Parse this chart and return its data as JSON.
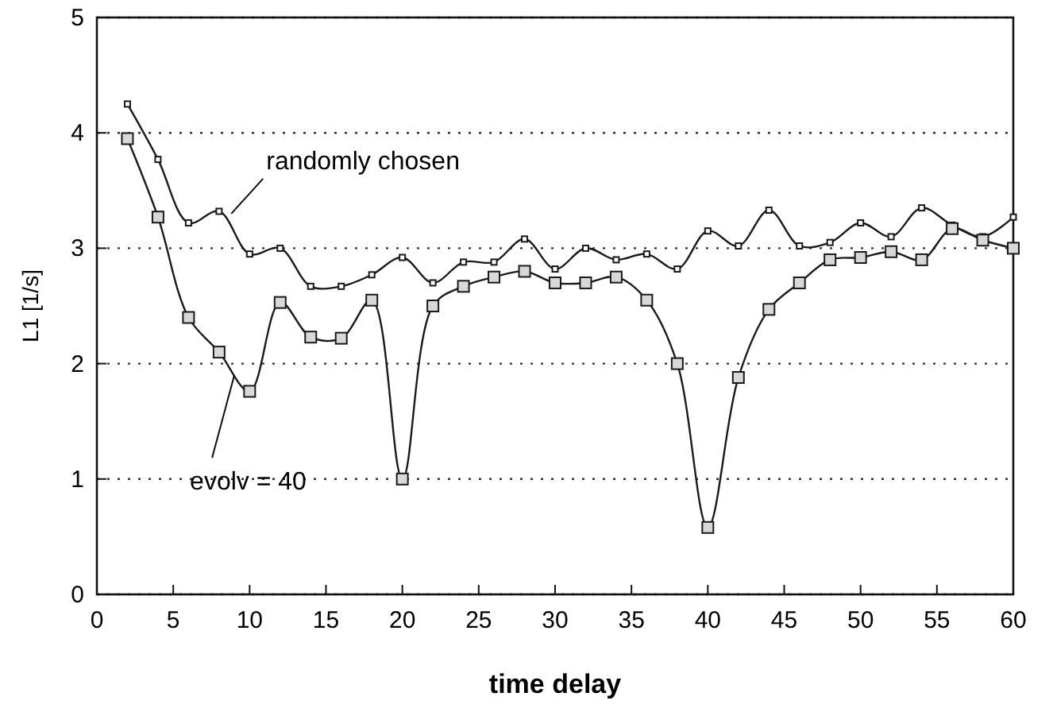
{
  "chart_data": {
    "type": "line",
    "xlabel": "time delay",
    "ylabel": "L1 [1/s]",
    "x": [
      2,
      4,
      6,
      8,
      10,
      12,
      14,
      16,
      18,
      20,
      22,
      24,
      26,
      28,
      30,
      32,
      34,
      36,
      38,
      40,
      42,
      44,
      46,
      48,
      50,
      52,
      54,
      56,
      58,
      60
    ],
    "series": [
      {
        "color": "#1a1a1a",
        "values": [
          4.25,
          3.77,
          3.22,
          3.32,
          2.95,
          3.0,
          2.67,
          2.67,
          2.77,
          2.92,
          2.7,
          2.88,
          2.88,
          3.08,
          2.82,
          3.0,
          2.9,
          2.95,
          2.82,
          3.15,
          3.02,
          3.33,
          3.02,
          3.05,
          3.22,
          3.1,
          3.35,
          3.2,
          3.1,
          3.27
        ]
      },
      {
        "color": "#1a1a1a",
        "values": [
          3.95,
          3.27,
          2.4,
          2.1,
          1.76,
          2.53,
          2.23,
          2.22,
          2.55,
          1.0,
          2.5,
          2.67,
          2.75,
          2.8,
          2.7,
          2.7,
          2.75,
          2.55,
          2.0,
          0.58,
          1.88,
          2.47,
          2.7,
          2.9,
          2.92,
          2.97,
          2.9,
          3.17,
          3.07,
          3.0
        ]
      }
    ],
    "annotations": [
      {
        "text": "randomly chosen",
        "x": 8.8,
        "y": 3.3
      },
      {
        "text": "evolv = 40",
        "x": 9.0,
        "y": 1.9
      }
    ],
    "xlim": [
      0,
      60
    ],
    "xticks": [
      0,
      5,
      10,
      15,
      20,
      25,
      30,
      35,
      40,
      45,
      50,
      55,
      60
    ],
    "ylim": [
      0,
      5
    ],
    "yticks": [
      0,
      1,
      2,
      3,
      4,
      5
    ],
    "grid": "y",
    "marker": "square",
    "line_style": "solid"
  }
}
